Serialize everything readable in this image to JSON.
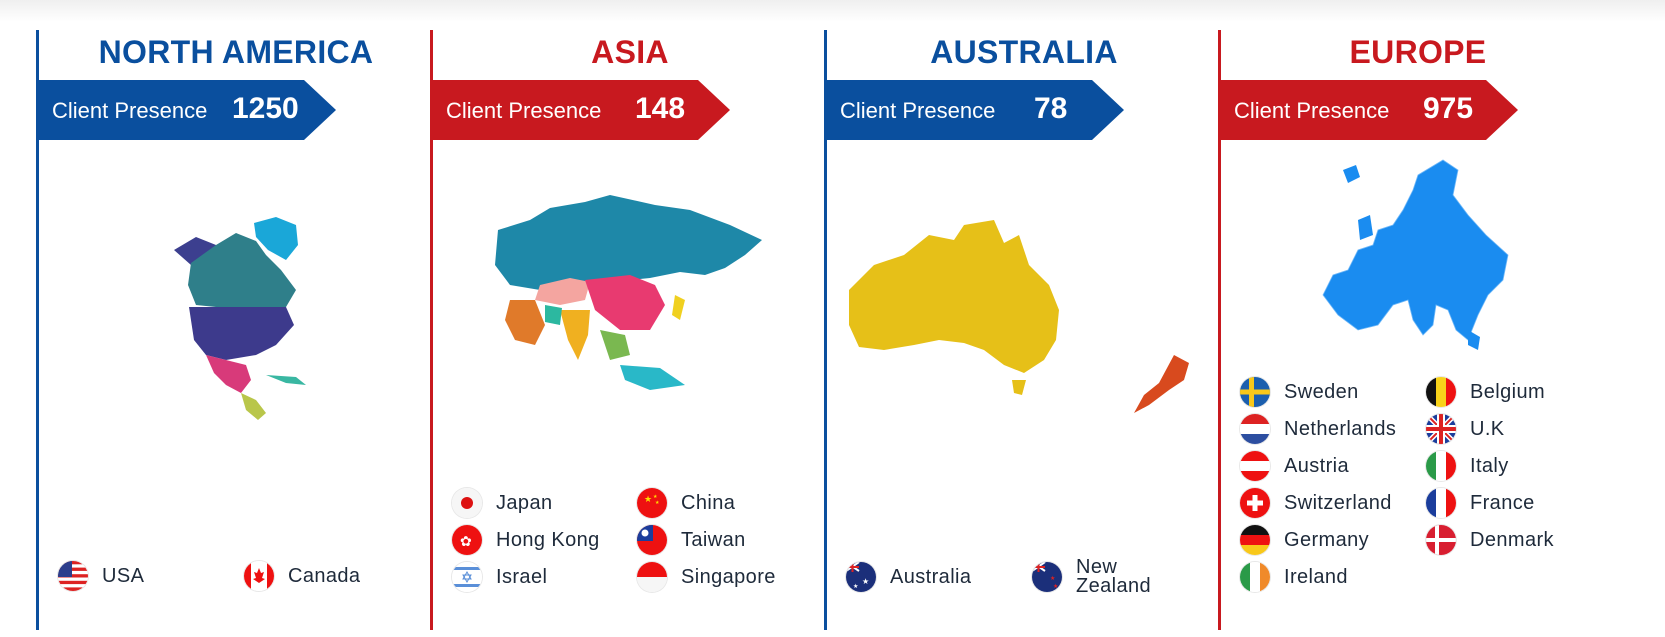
{
  "regions": [
    {
      "title": "NORTH AMERICA",
      "label": "Client Presence",
      "count": "1250",
      "color": "#0a4f9e",
      "countries": [
        {
          "name": "USA",
          "flag": "usa-flag-icon"
        },
        {
          "name": "Canada",
          "flag": "canada-flag-icon"
        }
      ]
    },
    {
      "title": "ASIA",
      "label": "Client Presence",
      "count": "148",
      "color": "#c8191f",
      "countries": [
        {
          "name": "Japan",
          "flag": "japan-flag-icon"
        },
        {
          "name": "China",
          "flag": "china-flag-icon"
        },
        {
          "name": "Hong Kong",
          "flag": "hong-kong-flag-icon"
        },
        {
          "name": "Taiwan",
          "flag": "taiwan-flag-icon"
        },
        {
          "name": "Israel",
          "flag": "israel-flag-icon"
        },
        {
          "name": "Singapore",
          "flag": "singapore-flag-icon"
        }
      ]
    },
    {
      "title": "AUSTRALIA",
      "label": "Client Presence",
      "count": "78",
      "color": "#0a4f9e",
      "countries": [
        {
          "name": "Australia",
          "flag": "australia-flag-icon"
        },
        {
          "name": "New Zealand",
          "flag": "new-zealand-flag-icon"
        }
      ]
    },
    {
      "title": "EUROPE",
      "label": "Client Presence",
      "count": "975",
      "color": "#c8191f",
      "countries": [
        {
          "name": "Sweden",
          "flag": "sweden-flag-icon"
        },
        {
          "name": "Belgium",
          "flag": "belgium-flag-icon"
        },
        {
          "name": "Netherlands",
          "flag": "netherlands-flag-icon"
        },
        {
          "name": "U.K",
          "flag": "uk-flag-icon"
        },
        {
          "name": "Austria",
          "flag": "austria-flag-icon"
        },
        {
          "name": "Italy",
          "flag": "italy-flag-icon"
        },
        {
          "name": "Switzerland",
          "flag": "switzerland-flag-icon"
        },
        {
          "name": "France",
          "flag": "france-flag-icon"
        },
        {
          "name": "Germany",
          "flag": "germany-flag-icon"
        },
        {
          "name": "Denmark",
          "flag": "denmark-flag-icon"
        },
        {
          "name": "Ireland",
          "flag": "ireland-flag-icon"
        }
      ]
    }
  ],
  "map_icons": [
    "north-america-map-icon",
    "asia-map-icon",
    "australia-map-icon",
    "europe-map-icon"
  ]
}
